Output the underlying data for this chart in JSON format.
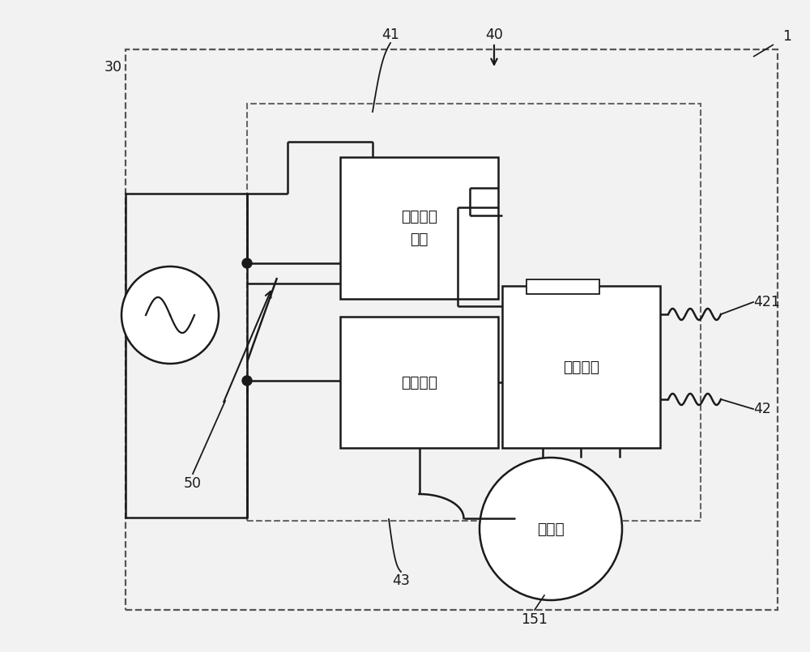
{
  "bg_color": "#f2f2f2",
  "line_color": "#1a1a1a",
  "dash_color_outer": "#555555",
  "dash_color_inner": "#666666",
  "label_1": "1",
  "label_30": "30",
  "label_40": "40",
  "label_41": "41",
  "label_42": "42",
  "label_421": "421",
  "label_43": "43",
  "label_50": "50",
  "label_151": "151",
  "text_power_detect": "电源检测\n电路",
  "text_power_circuit": "电源电路",
  "text_micro": "微处理器",
  "text_compressor": "压缩机",
  "fig_w": 10.0,
  "fig_h": 8.05,
  "dpi": 100
}
